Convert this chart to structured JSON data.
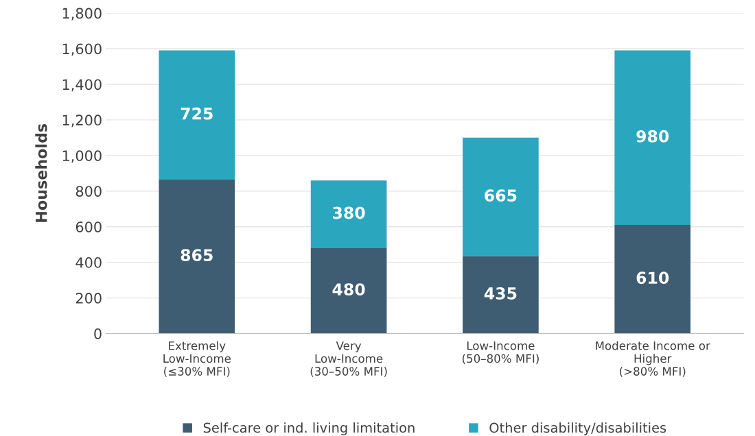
{
  "chart_data": {
    "type": "bar",
    "stacked": true,
    "ylabel": "Households",
    "categories": [
      "Extremely\nLow-Income\n(≤30% MFI)",
      "Very\nLow-Income\n(30–50% MFI)",
      "Low-Income\n(50–80% MFI)",
      "Moderate Income or\nHigher\n(>80% MFI)"
    ],
    "series": [
      {
        "name": "Self-care or ind. living limitation",
        "color": "#3e5d73",
        "values": [
          865,
          480,
          435,
          610
        ]
      },
      {
        "name": "Other disability/disabilities",
        "color": "#2ba6bf",
        "values": [
          725,
          380,
          665,
          980
        ]
      }
    ],
    "ylim": [
      0,
      1800
    ],
    "yticks": [
      0,
      {
        "value": 200,
        "label": "200"
      },
      {
        "value": 400,
        "label": "400"
      },
      {
        "value": 600,
        "label": "600"
      },
      {
        "value": 800,
        "label": "800"
      },
      {
        "value": 1000,
        "label": "1,000"
      },
      {
        "value": 1200,
        "label": "1,200"
      },
      {
        "value": 1400,
        "label": "1,400"
      },
      {
        "value": 1600,
        "label": "1,600"
      },
      {
        "value": 1800,
        "label": "1,800"
      }
    ],
    "grid": "y",
    "legend": "bottom",
    "data_labels": true
  }
}
